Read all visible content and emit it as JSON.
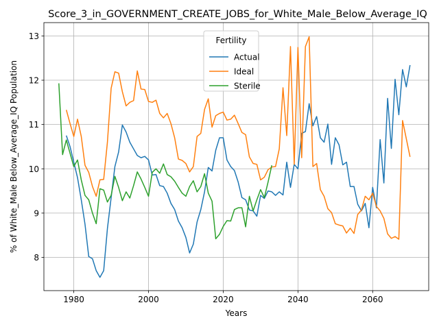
{
  "chart_data": {
    "type": "line",
    "title": "Score_3_in_GOVERNMENT_CREATE_JOBS_for_White_Male_Below_Average_IQ",
    "xlabel": "Years",
    "ylabel": "% of White_Male Below_Average_IQ Population",
    "xlim": [
      1972,
      2075
    ],
    "ylim": [
      7.25,
      13.3
    ],
    "x_ticks": [
      1980,
      2000,
      2020,
      2040,
      2060
    ],
    "y_ticks": [
      8,
      9,
      10,
      11,
      12,
      13
    ],
    "grid": true,
    "legend": {
      "title": "Fertility",
      "placement": "top-center"
    },
    "series": [
      {
        "name": "Actual",
        "color": "#1f77b4",
        "x": [
          1978,
          1979,
          1980,
          1981,
          1982,
          1983,
          1984,
          1985,
          1986,
          1987,
          1988,
          1989,
          1990,
          1991,
          1992,
          1993,
          1994,
          1995,
          1996,
          1997,
          1998,
          1999,
          2000,
          2001,
          2002,
          2003,
          2004,
          2005,
          2006,
          2007,
          2008,
          2009,
          2010,
          2011,
          2012,
          2013,
          2014,
          2015,
          2016,
          2017,
          2018,
          2019,
          2020,
          2021,
          2022,
          2023,
          2024,
          2025,
          2026,
          2027,
          2028,
          2029,
          2030,
          2031,
          2032,
          2033,
          2034,
          2035,
          2036,
          2037,
          2038,
          2039,
          2040,
          2041,
          2042,
          2043,
          2044,
          2045,
          2046,
          2047,
          2048,
          2049,
          2050,
          2051,
          2052,
          2053,
          2054,
          2055,
          2056,
          2057,
          2058,
          2059,
          2060,
          2061,
          2062,
          2063,
          2064,
          2065,
          2066,
          2067,
          2068,
          2069,
          2070
        ],
        "y": [
          10.75,
          10.5,
          10.15,
          9.8,
          9.3,
          8.75,
          8.02,
          7.97,
          7.7,
          7.55,
          7.7,
          8.65,
          9.35,
          10.05,
          10.38,
          10.99,
          10.83,
          10.6,
          10.45,
          10.3,
          10.25,
          10.28,
          10.2,
          9.86,
          9.87,
          9.62,
          9.6,
          9.45,
          9.22,
          9.08,
          8.82,
          8.67,
          8.45,
          8.1,
          8.3,
          8.8,
          9.08,
          9.48,
          10.03,
          9.95,
          10.42,
          10.7,
          10.7,
          10.2,
          10.05,
          9.96,
          9.7,
          9.35,
          9.3,
          9.07,
          9.05,
          8.93,
          9.4,
          9.33,
          9.5,
          9.48,
          9.4,
          9.48,
          9.41,
          10.15,
          9.58,
          10.1,
          10.0,
          10.8,
          10.84,
          11.47,
          10.97,
          11.18,
          10.7,
          10.6,
          11.01,
          10.1,
          10.7,
          10.54,
          10.09,
          10.15,
          9.6,
          9.6,
          9.2,
          9.05,
          9.22,
          8.67,
          9.58,
          9.12,
          10.66,
          9.68,
          11.59,
          10.46,
          12.02,
          11.22,
          12.24,
          11.85,
          12.34
        ]
      },
      {
        "name": "Ideal",
        "color": "#ff7f0e",
        "x": [
          1978,
          1979,
          1980,
          1981,
          1982,
          1983,
          1984,
          1985,
          1986,
          1987,
          1988,
          1989,
          1990,
          1991,
          1992,
          1993,
          1994,
          1995,
          1996,
          1997,
          1998,
          1999,
          2000,
          2001,
          2002,
          2003,
          2004,
          2005,
          2006,
          2007,
          2008,
          2009,
          2010,
          2011,
          2012,
          2013,
          2014,
          2015,
          2016,
          2017,
          2018,
          2019,
          2020,
          2021,
          2022,
          2023,
          2024,
          2025,
          2026,
          2027,
          2028,
          2029,
          2030,
          2031,
          2032,
          2033,
          2034,
          2035,
          2036,
          2037,
          2038,
          2039,
          2040,
          2041,
          2042,
          2043,
          2044,
          2045,
          2046,
          2047,
          2048,
          2049,
          2050,
          2051,
          2052,
          2053,
          2054,
          2055,
          2056,
          2057,
          2058,
          2059,
          2060,
          2061,
          2062,
          2063,
          2064,
          2065,
          2066,
          2067,
          2068,
          2069,
          2070
        ],
        "y": [
          11.33,
          11.02,
          10.73,
          11.12,
          10.73,
          10.08,
          9.92,
          9.6,
          9.38,
          9.75,
          9.76,
          10.6,
          11.82,
          12.19,
          12.16,
          11.74,
          11.42,
          11.5,
          11.54,
          12.21,
          11.8,
          11.79,
          11.52,
          11.5,
          11.55,
          11.25,
          11.15,
          11.25,
          11.02,
          10.7,
          10.22,
          10.19,
          10.12,
          9.93,
          10.05,
          10.73,
          10.8,
          11.34,
          11.58,
          10.94,
          11.2,
          11.25,
          11.28,
          11.1,
          11.12,
          11.21,
          11.02,
          10.82,
          10.77,
          10.27,
          10.12,
          10.1,
          9.75,
          9.81,
          9.98,
          10.04,
          10.05,
          10.45,
          11.83,
          10.75,
          12.76,
          10.1,
          12.74,
          10.25,
          12.76,
          12.98,
          10.05,
          10.12,
          9.53,
          9.38,
          9.1,
          9.01,
          8.76,
          8.73,
          8.71,
          8.55,
          8.66,
          8.54,
          8.97,
          9.07,
          9.38,
          9.3,
          9.45,
          9.15,
          9.05,
          8.88,
          8.53,
          8.43,
          8.47,
          8.41,
          11.09,
          10.68,
          10.27
        ]
      },
      {
        "name": "Sterile",
        "color": "#2ca02c",
        "x": [
          1976,
          1977,
          1978,
          1979,
          1980,
          1981,
          1982,
          1983,
          1984,
          1985,
          1986,
          1987,
          1988,
          1989,
          1990,
          1991,
          1992,
          1993,
          1994,
          1995,
          1996,
          1997,
          1998,
          1999,
          2000,
          2001,
          2002,
          2003,
          2004,
          2005,
          2006,
          2007,
          2008,
          2009,
          2010,
          2011,
          2012,
          2013,
          2014,
          2015,
          2016,
          2017,
          2018,
          2019,
          2020,
          2021,
          2022,
          2023,
          2024,
          2025,
          2026,
          2027,
          2028,
          2029,
          2030,
          2031,
          2032,
          2033
        ],
        "y": [
          11.93,
          10.32,
          10.65,
          10.35,
          10.05,
          10.2,
          9.75,
          9.4,
          9.3,
          9.0,
          8.76,
          9.55,
          9.52,
          9.25,
          9.4,
          9.83,
          9.58,
          9.28,
          9.48,
          9.34,
          9.62,
          9.93,
          9.77,
          9.58,
          9.38,
          9.92,
          10.0,
          9.9,
          10.11,
          9.87,
          9.82,
          9.72,
          9.58,
          9.45,
          9.38,
          9.6,
          9.73,
          9.48,
          9.6,
          9.89,
          9.45,
          9.27,
          8.42,
          8.52,
          8.7,
          8.83,
          8.82,
          9.08,
          9.12,
          9.12,
          8.69,
          9.38,
          9.05,
          9.3,
          9.53,
          9.35,
          9.7,
          10.08
        ]
      }
    ]
  }
}
